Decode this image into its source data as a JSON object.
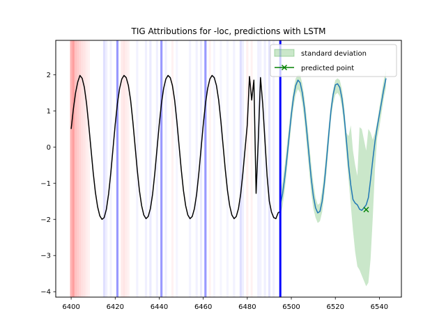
{
  "chart_data": {
    "type": "line",
    "title": "TIG Attributions for -loc, predictions with LSTM",
    "xlabel": "",
    "ylabel": "",
    "xlim": [
      6393,
      6550
    ],
    "ylim": [
      -4.15,
      2.95
    ],
    "xticks": [
      6400,
      6420,
      6440,
      6460,
      6480,
      6500,
      6520,
      6540
    ],
    "yticks": [
      -4,
      -3,
      -2,
      -1,
      0,
      1,
      2
    ],
    "ytick_labels": [
      "−4",
      "−3",
      "−2",
      "−1",
      "0",
      "1",
      "2"
    ],
    "grid": false,
    "legend_position": "top-right",
    "legend": {
      "band_label": "standard deviation",
      "point_label": "predicted point"
    },
    "colors": {
      "history": "#000000",
      "prediction": "#1f77b4",
      "band": "#2ca02c",
      "marker": "#008000",
      "divider": "#0000ff",
      "attr_positive": "#ff0000",
      "attr_negative": "#0000ff"
    },
    "divider_x": 6495,
    "history": {
      "x": [
        6400,
        6401,
        6402,
        6403,
        6404,
        6405,
        6406,
        6407,
        6408,
        6409,
        6410,
        6411,
        6412,
        6413,
        6414,
        6415,
        6416,
        6417,
        6418,
        6419,
        6420,
        6421,
        6422,
        6423,
        6424,
        6425,
        6426,
        6427,
        6428,
        6429,
        6430,
        6431,
        6432,
        6433,
        6434,
        6435,
        6436,
        6437,
        6438,
        6439,
        6440,
        6441,
        6442,
        6443,
        6444,
        6445,
        6446,
        6447,
        6448,
        6449,
        6450,
        6451,
        6452,
        6453,
        6454,
        6455,
        6456,
        6457,
        6458,
        6459,
        6460,
        6461,
        6462,
        6463,
        6464,
        6465,
        6466,
        6467,
        6468,
        6469,
        6470,
        6471,
        6472,
        6473,
        6474,
        6475,
        6476,
        6477,
        6478,
        6479,
        6480,
        6481,
        6482,
        6483,
        6484,
        6485,
        6486,
        6487,
        6488,
        6489,
        6490,
        6491,
        6492,
        6493,
        6494,
        6495
      ],
      "y": [
        0.5,
        1.05,
        1.5,
        1.8,
        1.98,
        1.9,
        1.65,
        1.2,
        0.6,
        -0.05,
        -0.7,
        -1.25,
        -1.65,
        -1.9,
        -2.0,
        -1.95,
        -1.72,
        -1.3,
        -0.72,
        -0.05,
        0.62,
        1.2,
        1.62,
        1.88,
        1.98,
        1.92,
        1.7,
        1.3,
        0.72,
        0.05,
        -0.62,
        -1.2,
        -1.62,
        -1.88,
        -1.98,
        -1.92,
        -1.7,
        -1.3,
        -0.72,
        -0.05,
        0.62,
        1.2,
        1.62,
        1.88,
        1.98,
        1.92,
        1.7,
        1.3,
        0.72,
        0.05,
        -0.62,
        -1.2,
        -1.62,
        -1.88,
        -1.98,
        -1.92,
        -1.7,
        -1.3,
        -0.72,
        -0.05,
        0.62,
        1.2,
        1.62,
        1.88,
        1.98,
        1.92,
        1.7,
        1.3,
        0.72,
        0.05,
        -0.62,
        -1.2,
        -1.62,
        -1.88,
        -1.98,
        -1.92,
        -1.7,
        -1.3,
        -0.72,
        -0.05,
        0.62,
        1.95,
        1.3,
        1.85,
        -1.28,
        0.2,
        1.92,
        1.2,
        0.2,
        -0.8,
        -1.5,
        -1.8,
        -1.95,
        -1.98,
        -1.82,
        -1.78
      ]
    },
    "prediction": {
      "x": [
        6495,
        6496,
        6497,
        6498,
        6499,
        6500,
        6501,
        6502,
        6503,
        6504,
        6505,
        6506,
        6507,
        6508,
        6509,
        6510,
        6511,
        6512,
        6513,
        6514,
        6515,
        6516,
        6517,
        6518,
        6519,
        6520,
        6521,
        6522,
        6523,
        6524,
        6525,
        6526,
        6527,
        6528,
        6529,
        6530,
        6531,
        6532,
        6533,
        6534,
        6535,
        6536,
        6537,
        6538,
        6539,
        6540,
        6541,
        6542,
        6543
      ],
      "y": [
        -1.6,
        -1.3,
        -0.85,
        -0.3,
        0.3,
        0.9,
        1.38,
        1.7,
        1.85,
        1.78,
        1.5,
        1.05,
        0.45,
        -0.2,
        -0.85,
        -1.35,
        -1.68,
        -1.82,
        -1.78,
        -1.5,
        -1.0,
        -0.35,
        0.35,
        1.0,
        1.45,
        1.72,
        1.75,
        1.65,
        1.35,
        0.85,
        0.2,
        -0.5,
        -1.05,
        -1.45,
        -1.55,
        -1.6,
        -1.72,
        -1.75,
        -1.68,
        -1.6,
        -1.4,
        -0.9,
        -0.35,
        0.15,
        0.55,
        0.9,
        1.25,
        1.6,
        1.9
      ],
      "std_upper": [
        -1.3,
        -0.95,
        -0.5,
        0.05,
        0.6,
        1.15,
        1.6,
        1.9,
        2.0,
        2.0,
        1.75,
        1.35,
        0.8,
        0.2,
        -0.45,
        -1.0,
        -1.4,
        -1.6,
        -1.55,
        -1.2,
        -0.7,
        -0.05,
        0.6,
        1.2,
        1.6,
        1.85,
        1.9,
        1.85,
        1.6,
        1.15,
        0.4,
        0.3,
        0.6,
        -0.1,
        -0.5,
        -0.8,
        0.55,
        0.5,
        0.2,
        -0.1,
        0.5,
        0.4,
        0.2,
        0.4,
        0.7,
        1.1,
        1.5,
        1.85,
        2.15
      ],
      "std_lower": [
        -1.9,
        -1.65,
        -1.2,
        -0.65,
        0.0,
        0.6,
        1.1,
        1.45,
        1.6,
        1.5,
        1.2,
        0.7,
        0.05,
        -0.6,
        -1.25,
        -1.7,
        -1.95,
        -2.1,
        -2.05,
        -1.8,
        -1.3,
        -0.7,
        0.05,
        0.75,
        1.2,
        1.45,
        1.5,
        1.4,
        1.1,
        0.55,
        -0.2,
        -0.9,
        -1.6,
        -2.3,
        -2.9,
        -3.3,
        -3.4,
        -3.55,
        -3.7,
        -3.85,
        -3.75,
        -3.1,
        -1.95,
        -0.6,
        0.25,
        0.55,
        0.95,
        1.35,
        1.65
      ]
    },
    "predicted_point": {
      "x": 6534,
      "y": -1.73
    },
    "attributions": [
      {
        "x": 6400,
        "weight": 0.3
      },
      {
        "x": 6401,
        "weight": 0.38
      },
      {
        "x": 6402,
        "weight": 0.24
      },
      {
        "x": 6403,
        "weight": 0.2
      },
      {
        "x": 6404,
        "weight": 0.16
      },
      {
        "x": 6405,
        "weight": 0.12
      },
      {
        "x": 6406,
        "weight": 0.1
      },
      {
        "x": 6407,
        "weight": 0.07
      },
      {
        "x": 6408,
        "weight": 0.05
      },
      {
        "x": 6415,
        "weight": -0.12
      },
      {
        "x": 6416,
        "weight": -0.06
      },
      {
        "x": 6418,
        "weight": -0.05
      },
      {
        "x": 6421,
        "weight": -0.4
      },
      {
        "x": 6423,
        "weight": 0.08
      },
      {
        "x": 6424,
        "weight": 0.1
      },
      {
        "x": 6425,
        "weight": 0.07
      },
      {
        "x": 6426,
        "weight": 0.05
      },
      {
        "x": 6430,
        "weight": -0.05
      },
      {
        "x": 6434,
        "weight": -0.06
      },
      {
        "x": 6436,
        "weight": -0.08
      },
      {
        "x": 6439,
        "weight": -0.06
      },
      {
        "x": 6441,
        "weight": -0.4
      },
      {
        "x": 6443,
        "weight": -0.06
      },
      {
        "x": 6446,
        "weight": 0.05
      },
      {
        "x": 6448,
        "weight": -0.04
      },
      {
        "x": 6454,
        "weight": -0.05
      },
      {
        "x": 6457,
        "weight": -0.05
      },
      {
        "x": 6459,
        "weight": -0.08
      },
      {
        "x": 6461,
        "weight": -0.4
      },
      {
        "x": 6463,
        "weight": 0.05
      },
      {
        "x": 6465,
        "weight": -0.04
      },
      {
        "x": 6468,
        "weight": -0.04
      },
      {
        "x": 6471,
        "weight": -0.04
      },
      {
        "x": 6474,
        "weight": -0.05
      },
      {
        "x": 6477,
        "weight": -0.12
      },
      {
        "x": 6478,
        "weight": -0.06
      },
      {
        "x": 6480,
        "weight": 0.06
      },
      {
        "x": 6482,
        "weight": 0.05
      },
      {
        "x": 6485,
        "weight": -0.06
      },
      {
        "x": 6486,
        "weight": -0.05
      },
      {
        "x": 6488,
        "weight": -0.06
      },
      {
        "x": 6490,
        "weight": -0.1
      },
      {
        "x": 6492,
        "weight": -0.05
      }
    ]
  }
}
